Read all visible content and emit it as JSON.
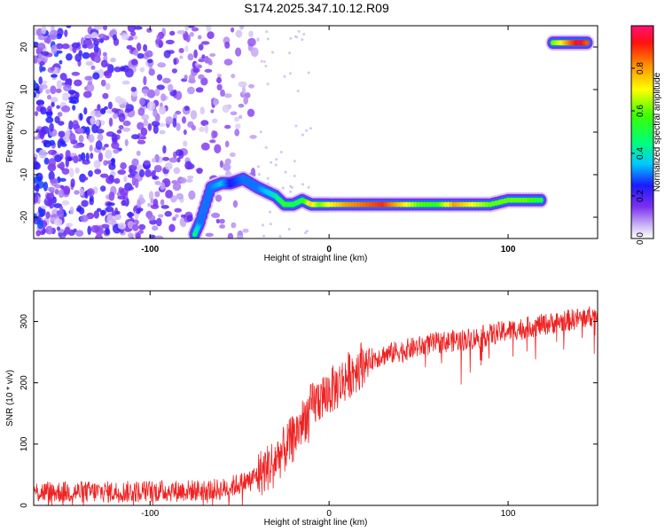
{
  "figure_title": "S174.2025.347.10.12.R09",
  "chart_data": [
    {
      "type": "heatmap",
      "title": "",
      "xlabel": "Height of straight line (km)",
      "ylabel": "Frequency (Hz)",
      "xlim": [
        -165,
        150
      ],
      "ylim": [
        -25,
        25
      ],
      "x_ticks": [
        -100,
        0,
        100
      ],
      "y_ticks": [
        20,
        10,
        0,
        -10,
        -20
      ],
      "colorbar": {
        "label": "Normalized spectral amplitude",
        "range": [
          0.0,
          1.0
        ],
        "ticks": [
          0.0,
          0.2,
          0.4,
          0.6,
          0.8
        ]
      },
      "features": {
        "noise_region_x": [
          -165,
          -40
        ],
        "noise_amplitude": 0.25,
        "main_trace": [
          {
            "x": -75,
            "y": -24,
            "amp": 0.45
          },
          {
            "x": -72,
            "y": -21,
            "amp": 0.3
          },
          {
            "x": -66,
            "y": -13,
            "amp": 0.3
          },
          {
            "x": -60,
            "y": -12,
            "amp": 0.35
          },
          {
            "x": -55,
            "y": -12,
            "amp": 0.25
          },
          {
            "x": -48,
            "y": -11,
            "amp": 0.3
          },
          {
            "x": -40,
            "y": -13,
            "amp": 0.3
          },
          {
            "x": -35,
            "y": -14,
            "amp": 0.35
          },
          {
            "x": -30,
            "y": -15,
            "amp": 0.4
          },
          {
            "x": -25,
            "y": -17,
            "amp": 0.55
          },
          {
            "x": -20,
            "y": -17,
            "amp": 0.5
          },
          {
            "x": -15,
            "y": -16,
            "amp": 0.5
          },
          {
            "x": -10,
            "y": -17,
            "amp": 0.75
          },
          {
            "x": -5,
            "y": -17,
            "amp": 0.6
          },
          {
            "x": 0,
            "y": -17,
            "amp": 0.7
          },
          {
            "x": 10,
            "y": -17,
            "amp": 0.8
          },
          {
            "x": 20,
            "y": -17,
            "amp": 0.85
          },
          {
            "x": 30,
            "y": -17,
            "amp": 0.9
          },
          {
            "x": 40,
            "y": -17,
            "amp": 0.75
          },
          {
            "x": 50,
            "y": -17,
            "amp": 0.6
          },
          {
            "x": 60,
            "y": -17,
            "amp": 0.55
          },
          {
            "x": 70,
            "y": -17,
            "amp": 0.8
          },
          {
            "x": 80,
            "y": -17,
            "amp": 0.7
          },
          {
            "x": 90,
            "y": -17,
            "amp": 0.6
          },
          {
            "x": 100,
            "y": -16,
            "amp": 0.6
          },
          {
            "x": 110,
            "y": -16,
            "amp": 0.6
          },
          {
            "x": 120,
            "y": -16,
            "amp": 0.5
          }
        ],
        "secondary_trace": [
          {
            "x": 125,
            "y": 21,
            "amp": 0.6
          },
          {
            "x": 130,
            "y": 21,
            "amp": 0.7
          },
          {
            "x": 135,
            "y": 21,
            "amp": 0.85
          },
          {
            "x": 140,
            "y": 21,
            "amp": 0.95
          },
          {
            "x": 145,
            "y": 21,
            "amp": 0.85
          }
        ]
      }
    },
    {
      "type": "line",
      "title": "",
      "xlabel": "Height of straight line (km)",
      "ylabel": "SNR (10 * v/v)",
      "xlim": [
        -165,
        150
      ],
      "ylim": [
        0,
        350
      ],
      "x_ticks": [
        -100,
        0,
        100
      ],
      "y_ticks": [
        0,
        100,
        200,
        300
      ],
      "color": "#ee2222",
      "series": [
        {
          "name": "SNR",
          "trend_x": [
            -165,
            -120,
            -80,
            -60,
            -45,
            -35,
            -25,
            -20,
            -15,
            -10,
            -5,
            0,
            5,
            10,
            20,
            30,
            40,
            60,
            80,
            100,
            120,
            140,
            150
          ],
          "trend_y": [
            22,
            22,
            24,
            26,
            40,
            60,
            90,
            110,
            135,
            160,
            175,
            185,
            195,
            210,
            235,
            245,
            252,
            265,
            272,
            285,
            295,
            305,
            310
          ],
          "noise_amplitude": 18
        }
      ]
    }
  ]
}
